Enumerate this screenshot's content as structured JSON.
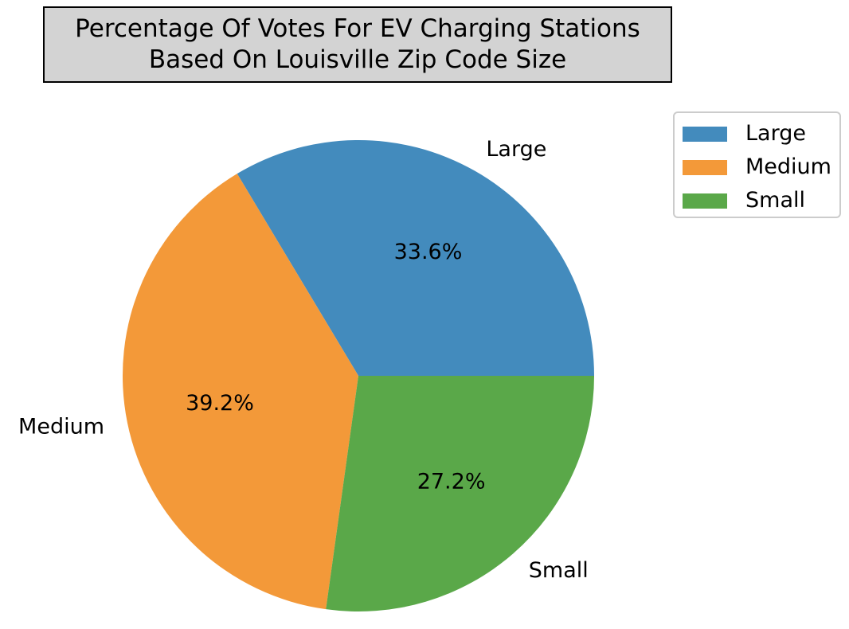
{
  "chart_data": {
    "type": "pie",
    "title_lines": [
      "Percentage Of Votes For EV Charging Stations",
      "Based On Louisville Zip Code Size"
    ],
    "categories": [
      "Large",
      "Medium",
      "Small"
    ],
    "values": [
      33.6,
      39.2,
      27.2
    ],
    "value_labels": [
      "33.6%",
      "39.2%",
      "27.2%"
    ],
    "colors": [
      "#438bbd",
      "#f39939",
      "#5aa849"
    ],
    "start_angle_deg": 0,
    "direction": "counterclockwise",
    "legend": {
      "placement": "upper-right-outside",
      "entries": [
        "Large",
        "Medium",
        "Small"
      ]
    }
  }
}
